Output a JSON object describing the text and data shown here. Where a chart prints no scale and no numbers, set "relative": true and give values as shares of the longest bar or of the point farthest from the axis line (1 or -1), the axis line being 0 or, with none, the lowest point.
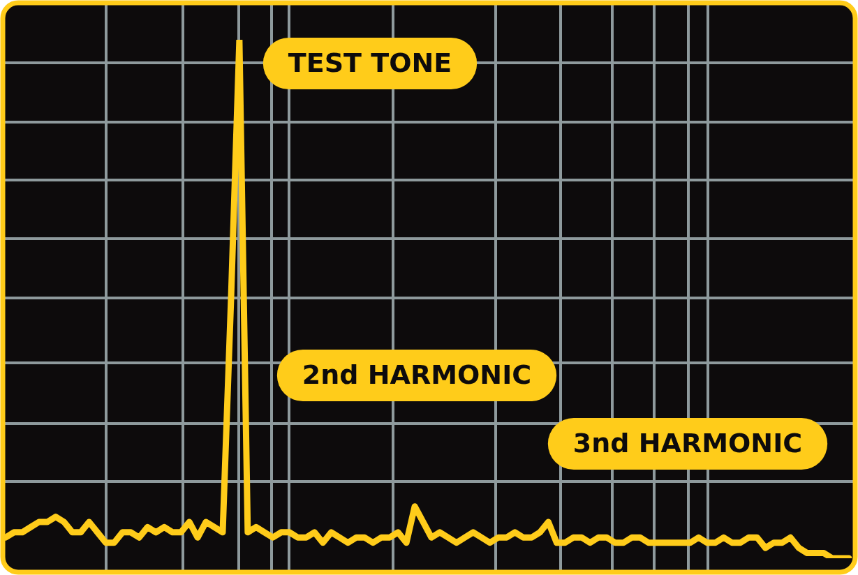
{
  "chart_data": {
    "type": "line",
    "relative": true,
    "grid": true,
    "legend": false,
    "marker": "none",
    "categories": [
      null,
      null,
      null,
      null,
      null,
      null,
      null,
      null,
      null,
      null,
      null,
      null,
      null,
      null,
      null,
      null,
      null,
      null,
      null,
      null,
      null,
      null,
      null,
      null,
      null,
      null,
      null,
      null,
      null,
      null,
      null,
      null,
      null,
      null,
      null,
      null,
      null,
      null,
      null,
      null,
      null,
      null,
      null,
      null,
      null,
      null,
      null,
      null,
      null,
      null,
      null,
      null,
      null,
      null,
      null,
      null,
      null,
      null,
      null,
      null,
      null,
      null,
      null,
      null,
      null,
      null,
      null,
      null,
      null,
      null,
      null,
      null,
      null,
      null,
      null,
      null,
      null,
      null,
      null,
      null,
      null,
      null,
      null,
      null,
      null,
      null,
      null,
      null,
      null,
      null,
      null,
      null,
      null,
      null,
      null,
      null,
      null,
      null,
      null,
      null,
      null,
      null
    ],
    "series": [
      {
        "color": "#ffcc1a",
        "values": [
          0.04,
          0.05,
          0.05,
          0.06,
          0.07,
          0.07,
          0.08,
          0.07,
          0.05,
          0.05,
          0.07,
          0.05,
          0.03,
          0.03,
          0.05,
          0.05,
          0.04,
          0.06,
          0.05,
          0.06,
          0.05,
          0.05,
          0.07,
          0.04,
          0.07,
          0.06,
          0.05,
          0.5,
          1.0,
          0.05,
          0.06,
          0.05,
          0.04,
          0.05,
          0.05,
          0.04,
          0.04,
          0.05,
          0.03,
          0.05,
          0.04,
          0.03,
          0.04,
          0.04,
          0.03,
          0.04,
          0.04,
          0.05,
          0.03,
          0.1,
          0.07,
          0.04,
          0.05,
          0.04,
          0.03,
          0.04,
          0.05,
          0.04,
          0.03,
          0.04,
          0.04,
          0.05,
          0.04,
          0.04,
          0.05,
          0.07,
          0.03,
          0.03,
          0.04,
          0.04,
          0.03,
          0.04,
          0.04,
          0.03,
          0.03,
          0.04,
          0.04,
          0.03,
          0.03,
          0.03,
          0.03,
          0.03,
          0.03,
          0.04,
          0.03,
          0.03,
          0.04,
          0.03,
          0.03,
          0.04,
          0.04,
          0.02,
          0.03,
          0.03,
          0.04,
          0.02,
          0.01,
          0.01,
          0.01,
          0.0,
          0.0,
          0.0
        ]
      }
    ],
    "annotations": [
      "TEST TONE",
      "2nd HARMONIC",
      "3nd HARMONIC"
    ]
  }
}
